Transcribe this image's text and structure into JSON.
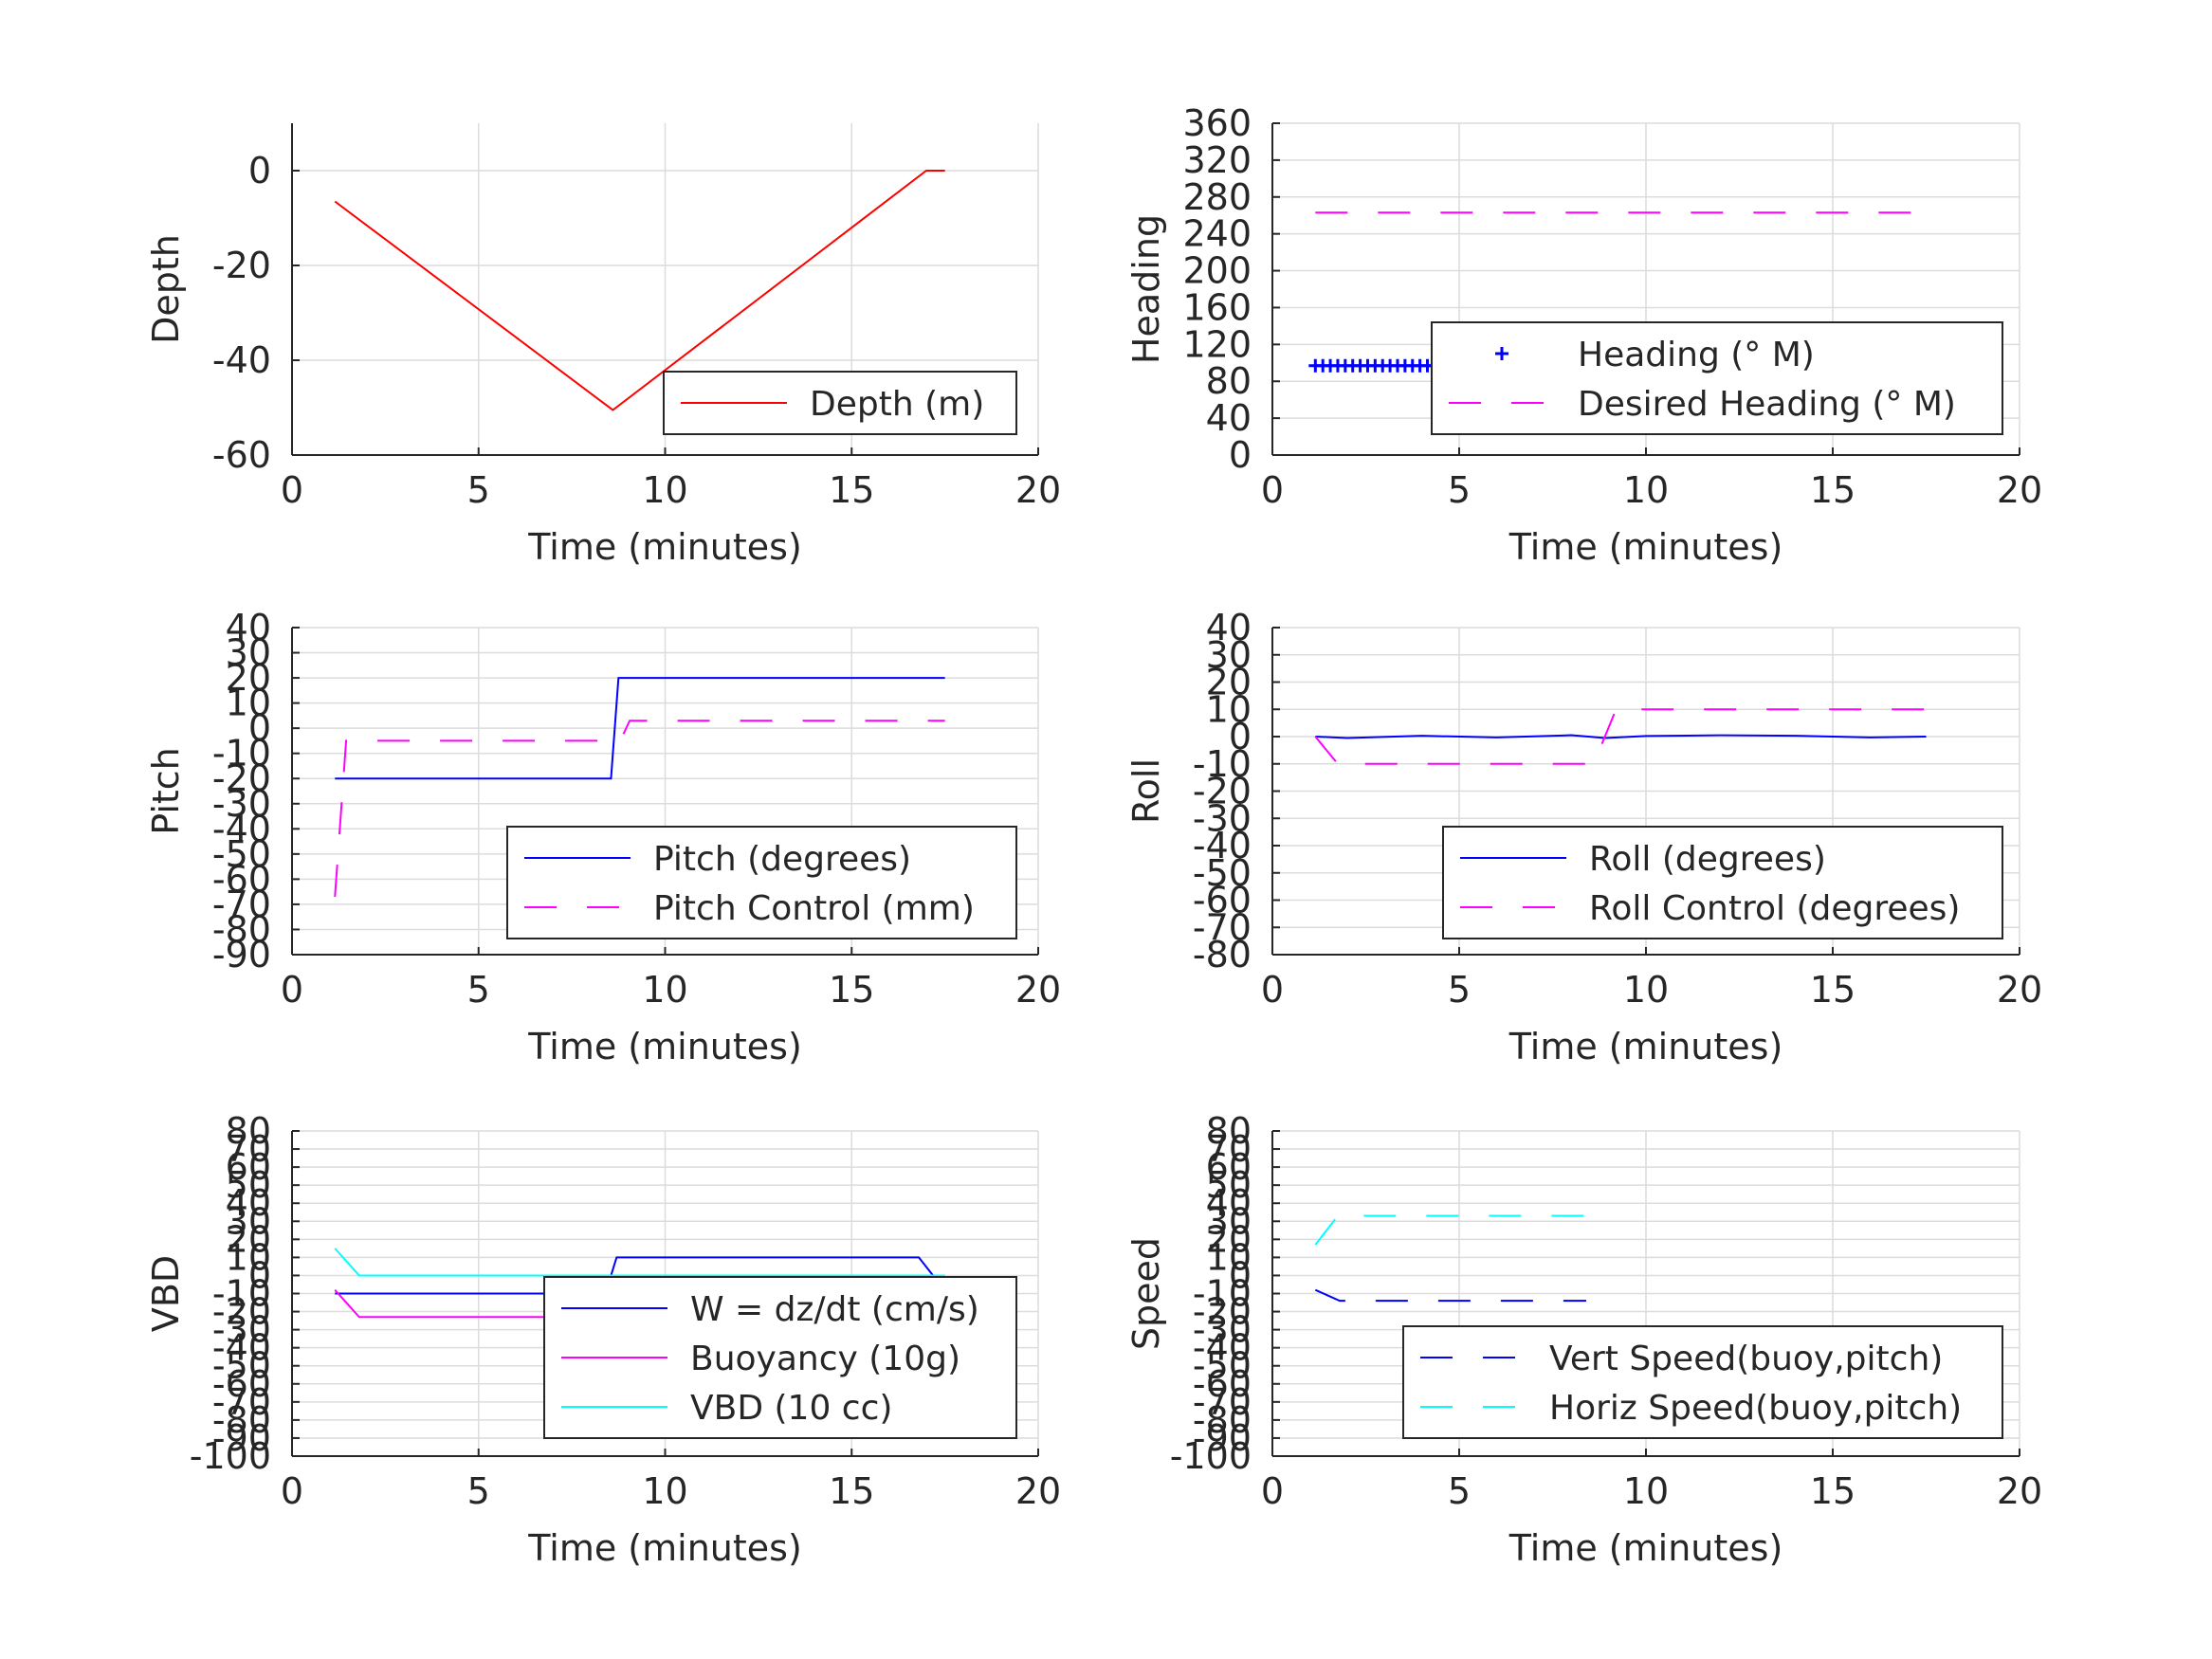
{
  "chart_data": [
    {
      "type": "line",
      "xlabel": "Time (minutes)",
      "ylabel": "Depth",
      "xlim": [
        0,
        20
      ],
      "ylim": [
        -60,
        10
      ],
      "xticks": [
        0,
        5,
        10,
        15,
        20
      ],
      "yticks": [
        -60,
        -40,
        -20,
        0
      ],
      "grid": true,
      "legend_placement": "bottom-right",
      "series": [
        {
          "name": "Depth (m)",
          "color": "#ff0000",
          "style": "solid",
          "x": [
            1.15,
            8.6,
            17.0,
            17.5
          ],
          "y": [
            -6.5,
            -50.5,
            0,
            0
          ]
        }
      ]
    },
    {
      "type": "line",
      "xlabel": "Time (minutes)",
      "ylabel": "Heading",
      "xlim": [
        0,
        20
      ],
      "ylim": [
        0,
        360
      ],
      "xticks": [
        0,
        5,
        10,
        15,
        20
      ],
      "yticks": [
        0,
        40,
        80,
        120,
        160,
        200,
        240,
        280,
        320,
        360
      ],
      "grid": true,
      "legend_placement": "center-right",
      "series": [
        {
          "name": "Heading (° M)",
          "color": "#0000ff",
          "style": "markers-plus",
          "x": [
            1.15,
            17.5
          ],
          "y": [
            97,
            97
          ],
          "marker_spacing": 0.2,
          "extra_points": [
            {
              "x": 6.2,
              "y": 110
            }
          ]
        },
        {
          "name": "Desired Heading (° M)",
          "color": "#ff00ff",
          "style": "dashed",
          "x": [
            1.15,
            17.5
          ],
          "y": [
            263,
            263
          ]
        }
      ]
    },
    {
      "type": "line",
      "xlabel": "Time (minutes)",
      "ylabel": "Pitch",
      "xlim": [
        0,
        20
      ],
      "ylim": [
        -90,
        40
      ],
      "xticks": [
        0,
        5,
        10,
        15,
        20
      ],
      "yticks": [
        -90,
        -80,
        -70,
        -60,
        -50,
        -40,
        -30,
        -20,
        -10,
        0,
        10,
        20,
        30,
        40
      ],
      "grid": true,
      "legend_placement": "bottom-right",
      "series": [
        {
          "name": "Pitch (degrees)",
          "color": "#0000ff",
          "style": "solid",
          "x": [
            1.15,
            8.55,
            8.75,
            17.5
          ],
          "y": [
            -20,
            -20,
            20,
            20
          ]
        },
        {
          "name": "Pitch Control (mm)",
          "color": "#ff00ff",
          "style": "dashed",
          "x": [
            1.15,
            1.45,
            8.8,
            9.05,
            17.5
          ],
          "y": [
            -67,
            -5,
            -5,
            3,
            3
          ]
        }
      ]
    },
    {
      "type": "line",
      "xlabel": "Time (minutes)",
      "ylabel": "Roll",
      "xlim": [
        0,
        20
      ],
      "ylim": [
        -80,
        40
      ],
      "xticks": [
        0,
        5,
        10,
        15,
        20
      ],
      "yticks": [
        -80,
        -70,
        -60,
        -50,
        -40,
        -30,
        -20,
        -10,
        0,
        10,
        20,
        30,
        40
      ],
      "grid": true,
      "legend_placement": "bottom-right",
      "series": [
        {
          "name": "Roll (degrees)",
          "color": "#0000ff",
          "style": "solid",
          "x": [
            1.15,
            2.0,
            4.0,
            6.0,
            8.0,
            8.9,
            10.0,
            12.0,
            14.0,
            16.0,
            17.5
          ],
          "y": [
            0,
            -0.5,
            0.3,
            -0.3,
            0.5,
            -0.5,
            0.2,
            0.5,
            0.3,
            -0.3,
            0
          ]
        },
        {
          "name": "Roll Control (degrees)",
          "color": "#ff00ff",
          "style": "dashed",
          "x": [
            1.15,
            1.75,
            8.6,
            9.2,
            17.5
          ],
          "y": [
            0,
            -10,
            -10,
            10,
            10
          ]
        }
      ]
    },
    {
      "type": "line",
      "xlabel": "Time (minutes)",
      "ylabel": "VBD",
      "xlim": [
        0,
        20
      ],
      "ylim": [
        -100,
        80
      ],
      "xticks": [
        0,
        5,
        10,
        15,
        20
      ],
      "yticks": [
        -100,
        -90,
        -80,
        -70,
        -60,
        -50,
        -40,
        -30,
        -20,
        -10,
        0,
        10,
        20,
        30,
        40,
        50,
        60,
        70,
        80
      ],
      "grid": true,
      "legend_placement": "bottom-right",
      "series": [
        {
          "name": "W = dz/dt (cm/s)",
          "color": "#0000ff",
          "style": "solid",
          "x": [
            1.15,
            4.0,
            8.4,
            8.7,
            12.0,
            16.8,
            17.2,
            17.5
          ],
          "y": [
            -10,
            -10,
            -10,
            10,
            10,
            10,
            -0.5,
            -0.5
          ]
        },
        {
          "name": "Buoyancy (10g)",
          "color": "#ff00ff",
          "style": "solid",
          "x": [
            1.15,
            1.8,
            8.4
          ],
          "y": [
            -8,
            -23,
            -23
          ]
        },
        {
          "name": "VBD (10 cc)",
          "color": "#00ffff",
          "style": "solid",
          "x": [
            1.15,
            1.8,
            17.5
          ],
          "y": [
            15,
            0,
            0
          ]
        }
      ]
    },
    {
      "type": "line",
      "xlabel": "Time (minutes)",
      "ylabel": "Speed",
      "xlim": [
        0,
        20
      ],
      "ylim": [
        -100,
        80
      ],
      "xticks": [
        0,
        5,
        10,
        15,
        20
      ],
      "yticks": [
        -100,
        -90,
        -80,
        -70,
        -60,
        -50,
        -40,
        -30,
        -20,
        -10,
        0,
        10,
        20,
        30,
        40,
        50,
        60,
        70,
        80
      ],
      "grid": true,
      "legend_placement": "bottom-right",
      "series": [
        {
          "name": "Vert Speed(buoy,pitch)",
          "color": "#0000ff",
          "style": "dashed",
          "x": [
            1.15,
            1.8,
            8.4
          ],
          "y": [
            -8,
            -14,
            -14
          ]
        },
        {
          "name": "Horiz Speed(buoy,pitch)",
          "color": "#00ffff",
          "style": "dashed",
          "x": [
            1.15,
            1.75,
            8.4
          ],
          "y": [
            17,
            33,
            33
          ]
        }
      ]
    }
  ]
}
